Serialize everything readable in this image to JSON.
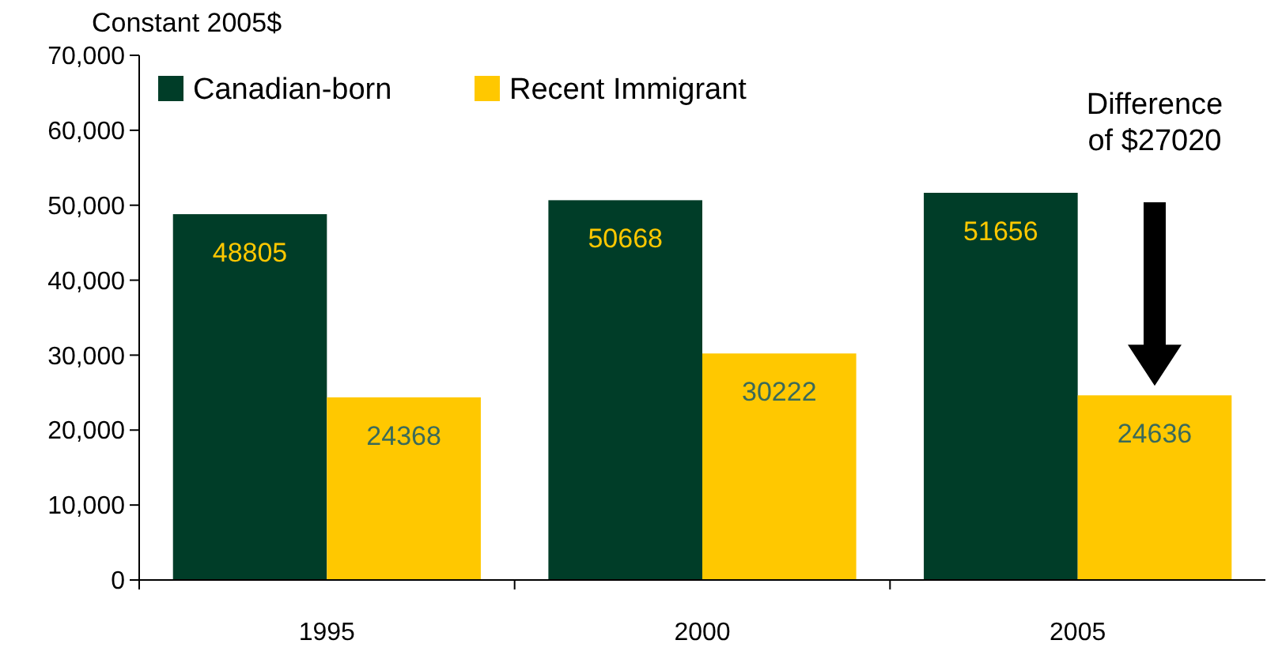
{
  "chart_data": {
    "type": "bar",
    "ylabel": "Constant 2005$",
    "categories": [
      "1995",
      "2000",
      "2005"
    ],
    "series": [
      {
        "name": "Canadian-born",
        "color": "#003d28",
        "values": [
          48805,
          50668,
          51656
        ]
      },
      {
        "name": "Recent Immigrant",
        "color": "#ffc800",
        "values": [
          24368,
          30222,
          24636
        ]
      }
    ],
    "ylim": [
      0,
      70000
    ],
    "yticks": [
      {
        "value": 0,
        "label": "0"
      },
      {
        "value": 10000,
        "label": "10,000"
      },
      {
        "value": 20000,
        "label": "20,000"
      },
      {
        "value": 30000,
        "label": "30,000"
      },
      {
        "value": 40000,
        "label": "40,000"
      },
      {
        "value": 50000,
        "label": "50,000"
      },
      {
        "value": 60000,
        "label": "60,000"
      },
      {
        "value": 70000,
        "label": "70,000"
      }
    ],
    "data_labels": true,
    "legend": "top left",
    "grid": false,
    "annotations": [
      {
        "text": "Difference\nof $27020",
        "x": "2005",
        "y": 51656
      }
    ]
  }
}
